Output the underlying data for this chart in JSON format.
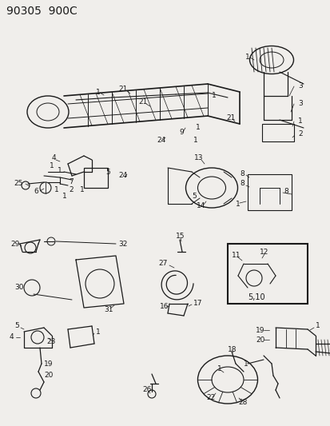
{
  "title": "90305  900C",
  "bg_color": "#f0eeeb",
  "fg_color": "#1a1a1a",
  "title_fontsize": 10,
  "figsize": [
    4.14,
    5.33
  ],
  "dpi": 100,
  "label_fontsize": 6.5
}
